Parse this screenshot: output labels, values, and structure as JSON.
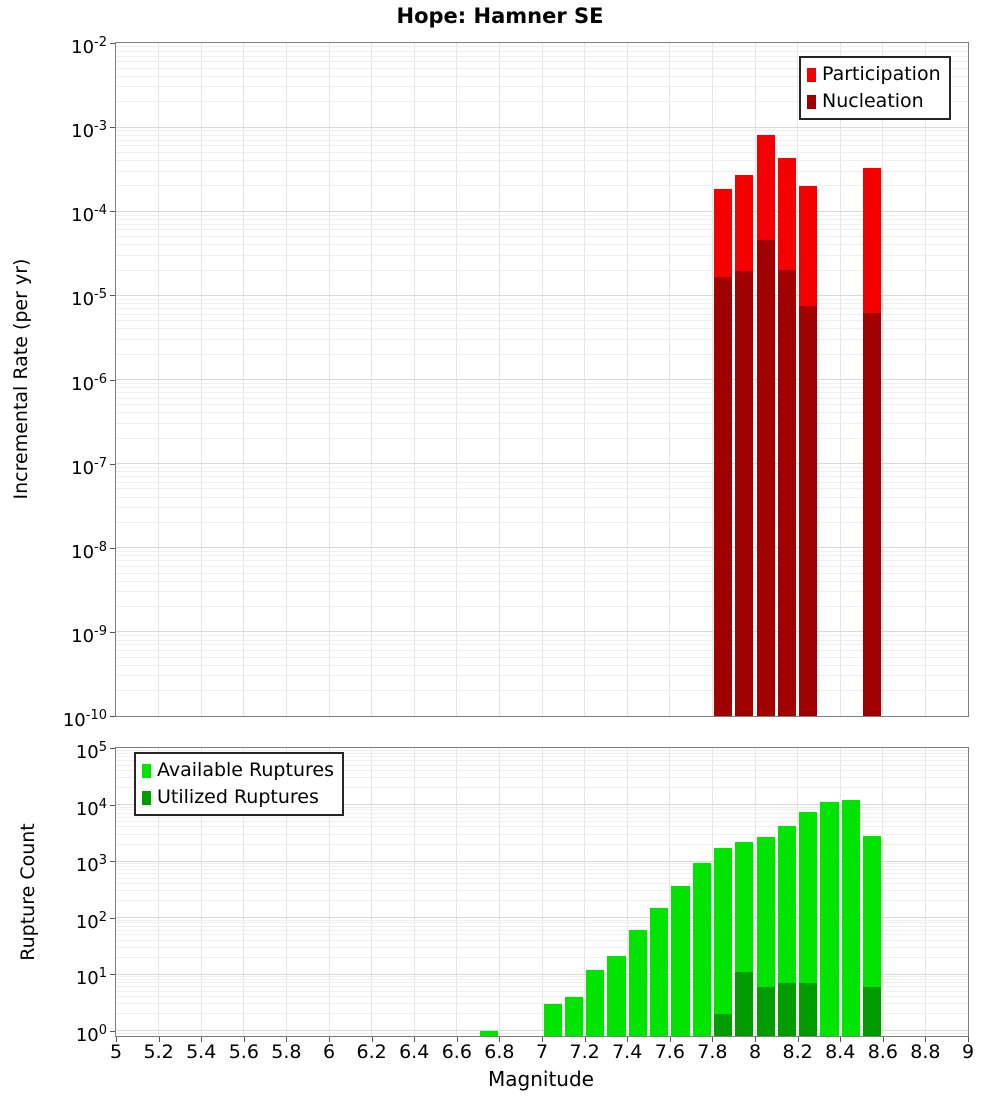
{
  "title": "Hope: Hamner SE",
  "frame_color": "#7f7f7f",
  "background_color": "#ffffff",
  "chart_data": [
    {
      "type": "bar",
      "title": "Hope: Hamner SE",
      "xlabel": "",
      "ylabel": "Incremental Rate (per yr)",
      "x_range": [
        5,
        9
      ],
      "x_tick_step": 0.2,
      "y_scale": "log",
      "y_range": [
        1e-10,
        0.01
      ],
      "y_tick_exponents": [
        -2,
        -3,
        -4,
        -5,
        -6,
        -7,
        -8,
        -9,
        -10
      ],
      "bin_width": 0.1,
      "grid": true,
      "legend_position": "top-right",
      "series": [
        {
          "name": "Participation",
          "color": "#f40000",
          "x": [
            7.85,
            7.95,
            8.05,
            8.15,
            8.25,
            8.55
          ],
          "values": [
            0.000185,
            0.00027,
            0.0008,
            0.00043,
            0.0002,
            0.00033
          ]
        },
        {
          "name": "Nucleation",
          "color": "#a00000",
          "x": [
            7.85,
            7.95,
            8.05,
            8.15,
            8.25,
            8.55
          ],
          "values": [
            1.65e-05,
            1.95e-05,
            4.5e-05,
            2e-05,
            7.4e-06,
            6.2e-06
          ]
        }
      ]
    },
    {
      "type": "bar",
      "title": "",
      "xlabel": "Magnitude",
      "ylabel": "Rupture Count",
      "x_range": [
        5,
        9
      ],
      "x_tick_step": 0.2,
      "y_scale": "log",
      "y_range": [
        0.8,
        100000
      ],
      "y_tick_exponents": [
        5,
        4,
        3,
        2,
        1,
        0
      ],
      "bin_width": 0.1,
      "grid": true,
      "legend_position": "top-left",
      "show_x_tick_labels": true,
      "series": [
        {
          "name": "Available Ruptures",
          "color": "#00e400",
          "x": [
            6.75,
            7.05,
            7.15,
            7.25,
            7.35,
            7.45,
            7.55,
            7.65,
            7.75,
            7.85,
            7.95,
            8.05,
            8.15,
            8.25,
            8.35,
            8.45,
            8.55
          ],
          "values": [
            1,
            3,
            4,
            12,
            21,
            60,
            150,
            360,
            930,
            1700,
            2200,
            2700,
            4100,
            7500,
            11000,
            12000,
            2800
          ]
        },
        {
          "name": "Utilized Ruptures",
          "color": "#009c00",
          "x": [
            7.85,
            7.95,
            8.05,
            8.15,
            8.25,
            8.55
          ],
          "values": [
            2,
            11,
            6,
            7,
            7,
            6
          ]
        }
      ]
    }
  ]
}
